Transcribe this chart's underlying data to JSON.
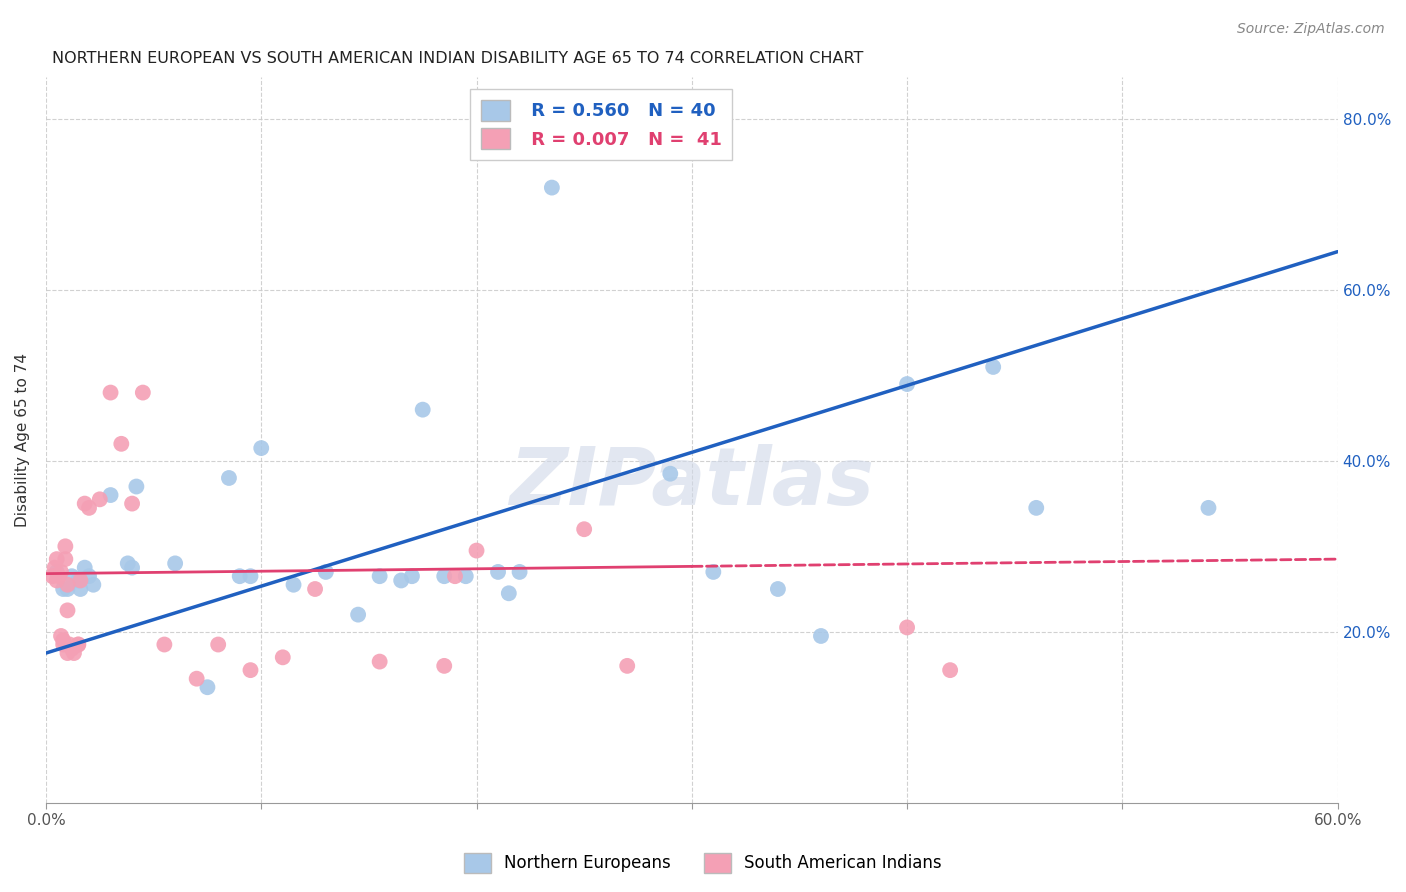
{
  "title": "NORTHERN EUROPEAN VS SOUTH AMERICAN INDIAN DISABILITY AGE 65 TO 74 CORRELATION CHART",
  "source": "Source: ZipAtlas.com",
  "ylabel": "Disability Age 65 to 74",
  "xmin": 0.0,
  "xmax": 0.6,
  "ymin": 0.0,
  "ymax": 0.85,
  "x_ticks": [
    0.0,
    0.1,
    0.2,
    0.3,
    0.4,
    0.5,
    0.6
  ],
  "y_ticks": [
    0.2,
    0.4,
    0.6,
    0.8
  ],
  "y_tick_labels_right": [
    "20.0%",
    "40.0%",
    "60.0%",
    "80.0%"
  ],
  "legend_r1": "R = 0.560",
  "legend_n1": "N = 40",
  "legend_r2": "R = 0.007",
  "legend_n2": "N =  41",
  "blue_color": "#a8c8e8",
  "pink_color": "#f4a0b5",
  "blue_line_color": "#2060c0",
  "pink_line_color": "#e04070",
  "watermark": "ZIPatlas",
  "blue_points_x": [
    0.005,
    0.008,
    0.01,
    0.012,
    0.015,
    0.016,
    0.018,
    0.02,
    0.022,
    0.03,
    0.038,
    0.04,
    0.042,
    0.06,
    0.075,
    0.085,
    0.09,
    0.095,
    0.1,
    0.115,
    0.13,
    0.145,
    0.155,
    0.165,
    0.17,
    0.175,
    0.185,
    0.195,
    0.21,
    0.215,
    0.22,
    0.235,
    0.29,
    0.31,
    0.34,
    0.36,
    0.4,
    0.44,
    0.46,
    0.54
  ],
  "blue_points_y": [
    0.27,
    0.25,
    0.25,
    0.265,
    0.26,
    0.25,
    0.275,
    0.265,
    0.255,
    0.36,
    0.28,
    0.275,
    0.37,
    0.28,
    0.135,
    0.38,
    0.265,
    0.265,
    0.415,
    0.255,
    0.27,
    0.22,
    0.265,
    0.26,
    0.265,
    0.46,
    0.265,
    0.265,
    0.27,
    0.245,
    0.27,
    0.72,
    0.385,
    0.27,
    0.25,
    0.195,
    0.49,
    0.51,
    0.345,
    0.345
  ],
  "pink_points_x": [
    0.003,
    0.004,
    0.005,
    0.005,
    0.006,
    0.007,
    0.007,
    0.008,
    0.008,
    0.009,
    0.009,
    0.01,
    0.01,
    0.01,
    0.011,
    0.012,
    0.013,
    0.015,
    0.015,
    0.016,
    0.018,
    0.02,
    0.025,
    0.03,
    0.035,
    0.04,
    0.045,
    0.055,
    0.07,
    0.08,
    0.095,
    0.11,
    0.125,
    0.155,
    0.185,
    0.19,
    0.2,
    0.25,
    0.27,
    0.4,
    0.42
  ],
  "pink_points_y": [
    0.265,
    0.275,
    0.26,
    0.285,
    0.265,
    0.27,
    0.195,
    0.19,
    0.185,
    0.285,
    0.3,
    0.225,
    0.255,
    0.175,
    0.185,
    0.18,
    0.175,
    0.185,
    0.185,
    0.26,
    0.35,
    0.345,
    0.355,
    0.48,
    0.42,
    0.35,
    0.48,
    0.185,
    0.145,
    0.185,
    0.155,
    0.17,
    0.25,
    0.165,
    0.16,
    0.265,
    0.295,
    0.32,
    0.16,
    0.205,
    0.155
  ],
  "blue_trendline_x": [
    0.0,
    0.6
  ],
  "blue_trendline_y": [
    0.175,
    0.645
  ],
  "pink_trendline_x": [
    0.0,
    0.6
  ],
  "pink_trendline_y": [
    0.268,
    0.285
  ],
  "pink_trendline_solid_end": 0.3
}
